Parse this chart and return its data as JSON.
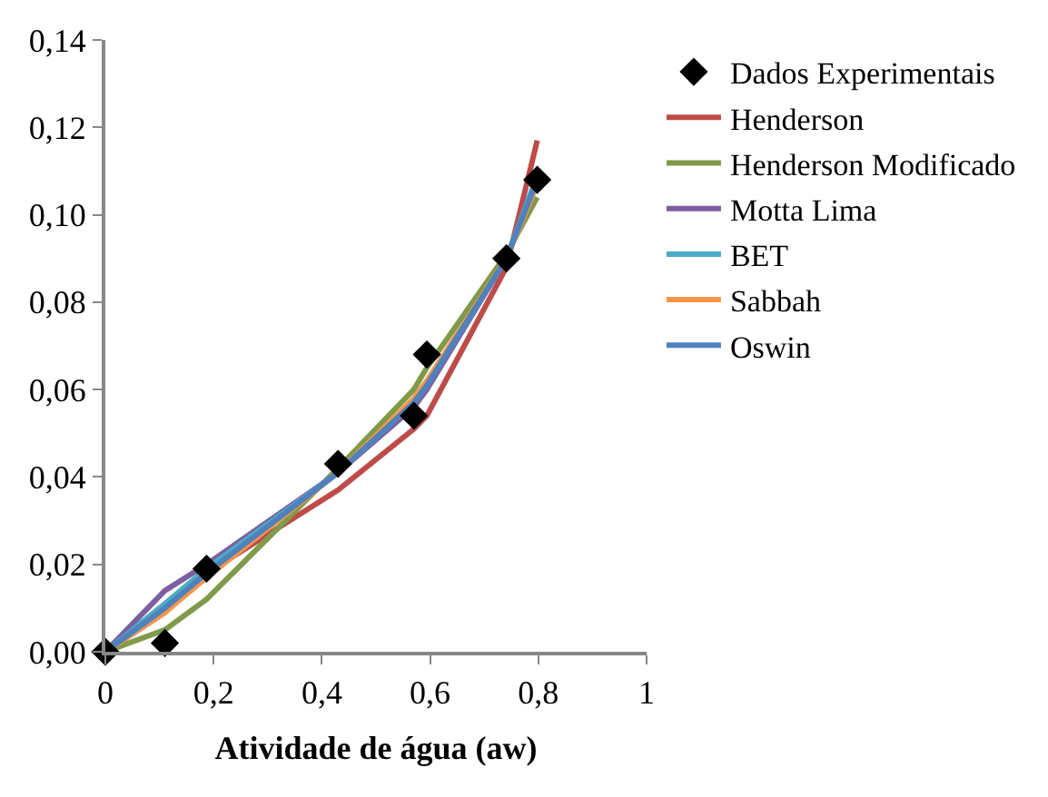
{
  "chart_data": {
    "type": "line",
    "xlabel": "Atividade de água (aw)",
    "x": [
      0,
      0.11,
      0.187,
      0.43,
      0.57,
      0.594,
      0.741,
      0.798
    ],
    "series": [
      {
        "name": "Dados Experimentais",
        "type": "scatter",
        "marker": "diamond",
        "color": "#000000",
        "values": [
          0,
          0.002,
          0.019,
          0.043,
          0.054,
          0.068,
          0.09,
          0.108
        ]
      },
      {
        "name": "Henderson",
        "color": "#be4b48",
        "values": [
          0,
          0.009,
          0.018,
          0.037,
          0.051,
          0.054,
          0.088,
          0.117
        ]
      },
      {
        "name": "Henderson Modificado",
        "color": "#7f9a48",
        "values": [
          0,
          0.005,
          0.012,
          0.042,
          0.06,
          0.065,
          0.091,
          0.104
        ]
      },
      {
        "name": "Motta Lima",
        "color": "#7d5fa0",
        "values": [
          0,
          0.014,
          0.02,
          0.041,
          0.056,
          0.06,
          0.09,
          0.108
        ]
      },
      {
        "name": "BET",
        "color": "#4bacc6",
        "values": [
          0,
          0.011,
          0.019,
          0.041,
          0.057,
          0.061,
          0.09,
          0.109
        ]
      },
      {
        "name": "Sabbah",
        "color": "#f79646",
        "values": [
          0,
          0.009,
          0.017,
          0.041,
          0.058,
          0.062,
          0.09,
          0.107
        ]
      },
      {
        "name": "Oswin",
        "color": "#4f81bd",
        "values": [
          0,
          0.01,
          0.018,
          0.041,
          0.057,
          0.061,
          0.09,
          0.108
        ]
      }
    ],
    "xlim": [
      0,
      1
    ],
    "xticks": [
      0,
      {
        "value": 0.2,
        "label": "0,2"
      },
      {
        "value": 0.4,
        "label": "0,4"
      },
      {
        "value": 0.6,
        "label": "0,6"
      },
      {
        "value": 0.8,
        "label": "0,8"
      },
      1
    ],
    "ylim": [
      0,
      0.14
    ],
    "yticks": [
      {
        "value": 0,
        "label": "0,00"
      },
      {
        "value": 0.02,
        "label": "0,02"
      },
      {
        "value": 0.04,
        "label": "0,04"
      },
      {
        "value": 0.06,
        "label": "0,06"
      },
      {
        "value": 0.08,
        "label": "0,08"
      },
      {
        "value": 0.1,
        "label": "0,10"
      },
      {
        "value": 0.12,
        "label": "0,12"
      },
      {
        "value": 0.14,
        "label": "0,14"
      }
    ],
    "legend": "right",
    "line_style": "solid",
    "marker": "none"
  }
}
